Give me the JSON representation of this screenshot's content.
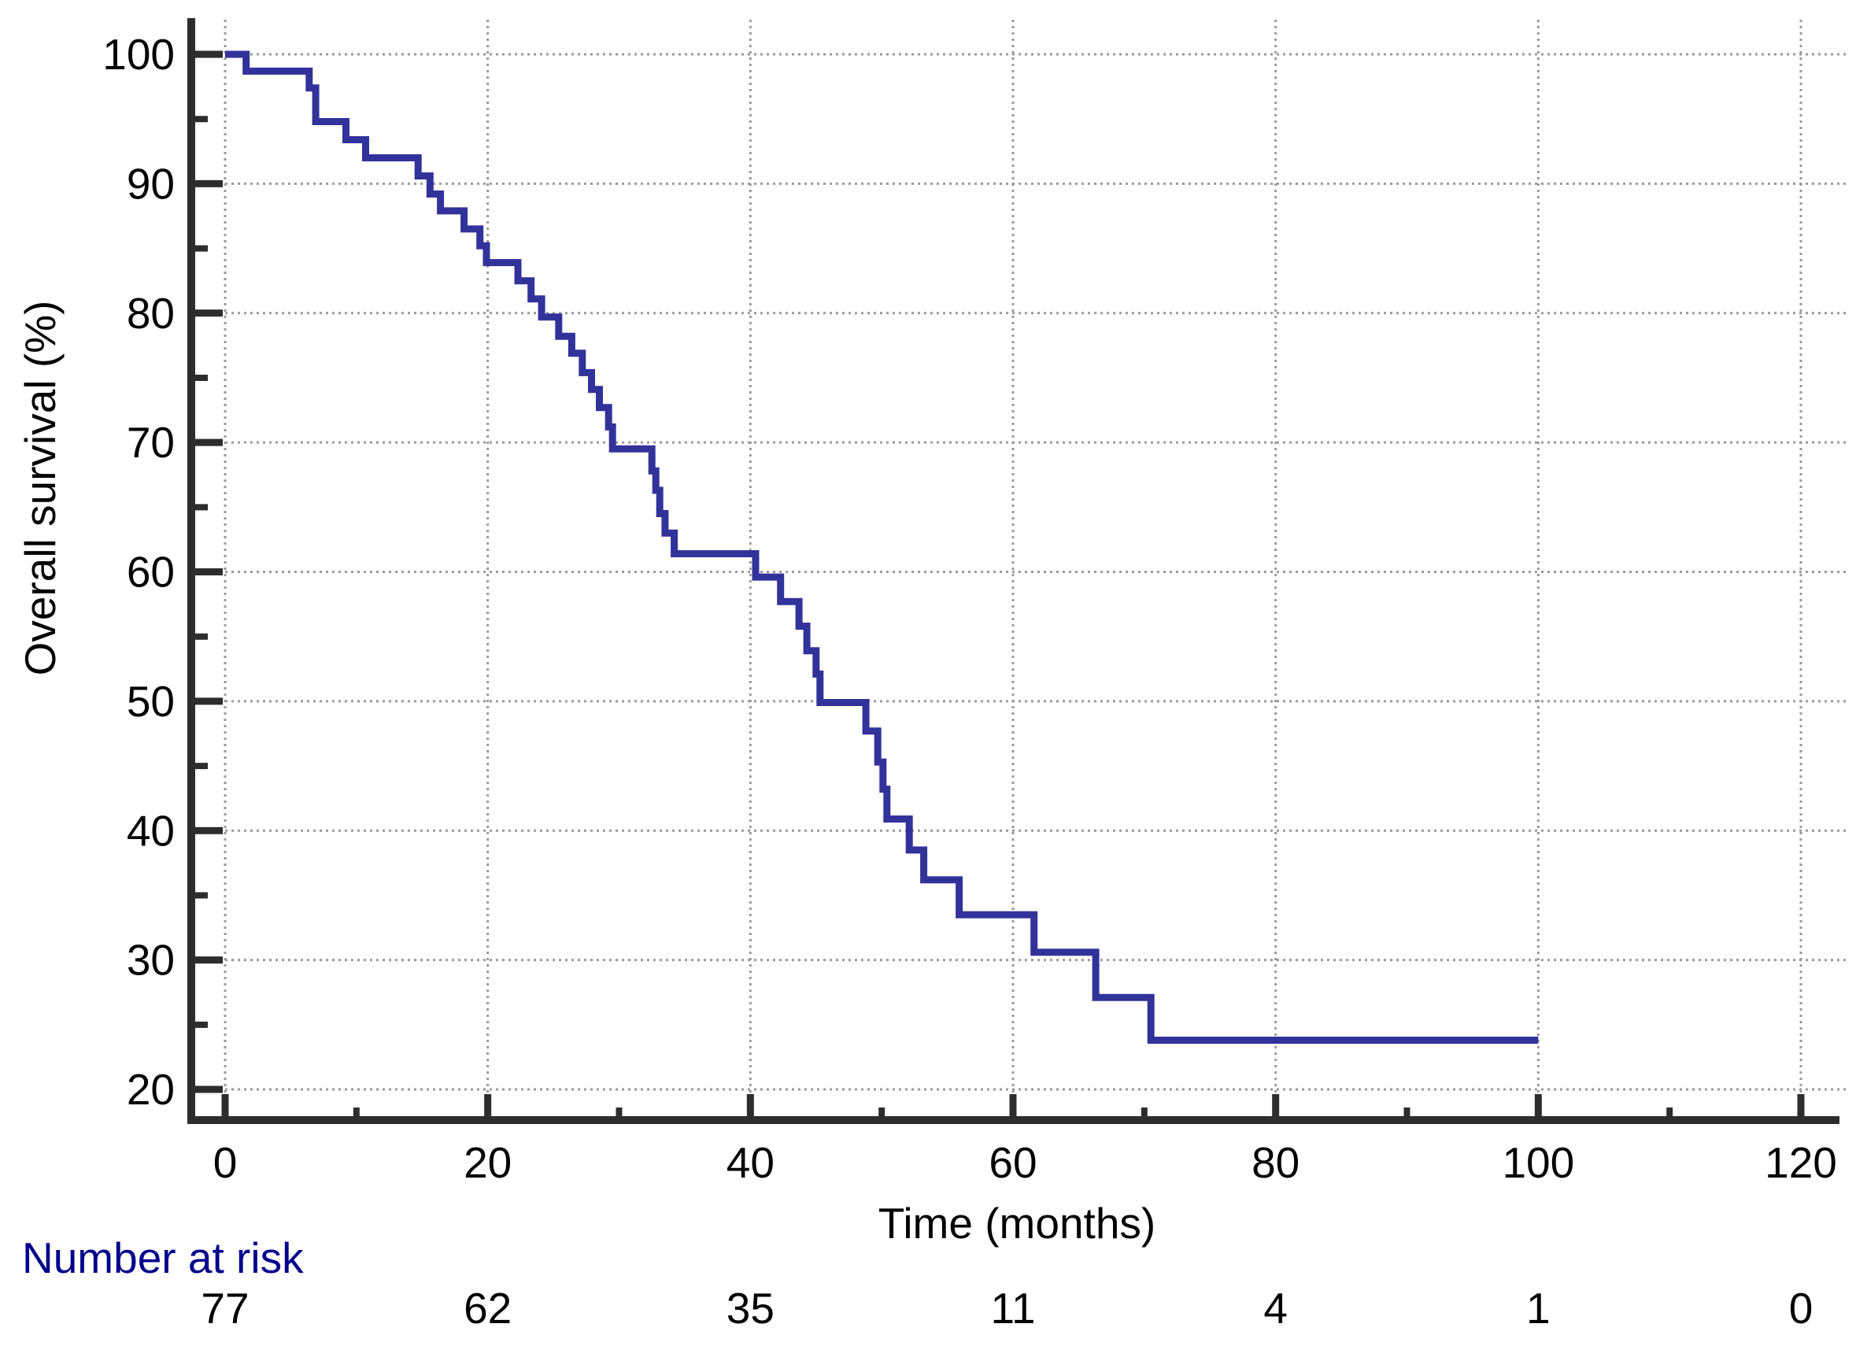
{
  "chart_data": {
    "type": "line",
    "subtype": "kaplan_meier_step_curve",
    "title": "",
    "xlabel": "Time (months)",
    "ylabel": "Overall survival (%)",
    "xlim": [
      0,
      120
    ],
    "ylim": [
      20,
      100
    ],
    "x_major_ticks": [
      0,
      20,
      40,
      60,
      80,
      100,
      120
    ],
    "x_minor_ticks": [
      10,
      30,
      50,
      70,
      90,
      110
    ],
    "y_major_ticks": [
      100,
      90,
      80,
      70,
      60,
      50,
      40,
      30,
      20
    ],
    "y_minor_ticks": [
      95,
      85,
      75,
      65,
      55,
      45,
      35,
      25
    ],
    "grid": "dotted gridlines at major ticks, both axes",
    "legend": "none",
    "series": [
      {
        "name": "Overall survival",
        "color": "#32329B",
        "line_width": 9,
        "start": [
          0,
          100
        ],
        "end_time": 100,
        "drops": [
          [
            1.6,
            98.7
          ],
          [
            6.4,
            97.4
          ],
          [
            6.9,
            94.8
          ],
          [
            9.2,
            93.4
          ],
          [
            10.7,
            92.0
          ],
          [
            14.7,
            90.6
          ],
          [
            15.6,
            89.2
          ],
          [
            16.4,
            87.9
          ],
          [
            18.2,
            86.5
          ],
          [
            19.4,
            85.2
          ],
          [
            19.9,
            83.9
          ],
          [
            22.3,
            82.5
          ],
          [
            23.3,
            81.1
          ],
          [
            24.1,
            79.7
          ],
          [
            25.4,
            78.2
          ],
          [
            26.4,
            76.9
          ],
          [
            27.2,
            75.4
          ],
          [
            27.9,
            74.1
          ],
          [
            28.5,
            72.7
          ],
          [
            29.2,
            71.2
          ],
          [
            29.5,
            69.5
          ],
          [
            32.5,
            67.8
          ],
          [
            32.8,
            66.3
          ],
          [
            33.1,
            64.5
          ],
          [
            33.5,
            63.0
          ],
          [
            34.2,
            61.4
          ],
          [
            40.4,
            59.6
          ],
          [
            42.3,
            57.7
          ],
          [
            43.7,
            55.8
          ],
          [
            44.3,
            53.9
          ],
          [
            45.0,
            52.1
          ],
          [
            45.3,
            49.9
          ],
          [
            48.8,
            47.7
          ],
          [
            49.7,
            45.3
          ],
          [
            50.1,
            43.2
          ],
          [
            50.4,
            40.9
          ],
          [
            52.1,
            38.5
          ],
          [
            53.2,
            36.2
          ],
          [
            55.9,
            33.5
          ],
          [
            61.6,
            30.6
          ],
          [
            66.3,
            27.1
          ],
          [
            70.5,
            23.8
          ]
        ]
      }
    ]
  },
  "risk_table": {
    "title": "Number at risk",
    "title_color": "#00008B",
    "times": [
      0,
      20,
      40,
      60,
      80,
      100,
      120
    ],
    "counts": [
      "77",
      "62",
      "35",
      "11",
      "4",
      "1",
      "0"
    ]
  },
  "colors": {
    "axis": "#2d2d2d",
    "grid": "#9a9a9a",
    "text": "#000000",
    "background": "#ffffff"
  }
}
